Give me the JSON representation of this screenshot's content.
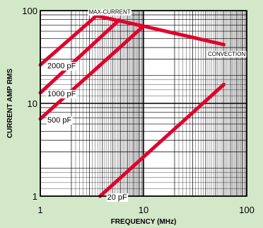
{
  "chart_data": {
    "type": "line",
    "title": "",
    "xlabel": "FREQUENCY (MHz)",
    "ylabel": "CURRENT AMP RMS",
    "x_scale": "log",
    "y_scale": "log",
    "xlim": [
      1,
      100
    ],
    "ylim": [
      1,
      100
    ],
    "x_ticks": [
      1,
      10,
      100
    ],
    "x_tick_labels": [
      "1",
      "10",
      "100"
    ],
    "y_ticks": [
      1,
      10,
      100
    ],
    "y_tick_labels": [
      "1",
      "10",
      "100"
    ],
    "grid": true,
    "line_color": "#e1002d",
    "series": [
      {
        "name": "2000 pF",
        "x": [
          1,
          3.5
        ],
        "y": [
          26,
          88
        ]
      },
      {
        "name": "1000 pF",
        "x": [
          1,
          5.8
        ],
        "y": [
          13,
          79
        ]
      },
      {
        "name": "500 pF",
        "x": [
          1,
          10
        ],
        "y": [
          6.8,
          68
        ]
      },
      {
        "name": "20 pF",
        "x": [
          3.8,
          60
        ],
        "y": [
          1,
          16
        ]
      },
      {
        "name": "",
        "x": [
          3.5,
          10,
          60
        ],
        "y": [
          88,
          68,
          43
        ]
      }
    ],
    "annotations": [
      {
        "text": "MAX-CURRENT",
        "x": 4.7,
        "y": 92
      },
      {
        "text": "CONVECTION",
        "x": 60,
        "y": 43
      }
    ]
  }
}
